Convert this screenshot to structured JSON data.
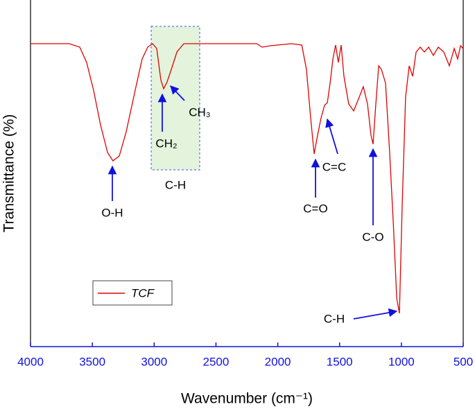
{
  "chart_data": {
    "type": "line",
    "x_label": "Wavenumber (cm⁻¹)",
    "y_label": "Transmittance (%)",
    "xlim": [
      4000,
      500
    ],
    "ylim": [
      0,
      100
    ],
    "xticks": [
      4000,
      3500,
      3000,
      2500,
      2000,
      1500,
      1000,
      500
    ],
    "legend_position": "lower left",
    "x": [
      4000,
      3686,
      3602,
      3546,
      3490,
      3434,
      3377,
      3333,
      3282,
      3226,
      3153,
      3097,
      3052,
      3013,
      2979,
      2946,
      2923,
      2895,
      2861,
      2816,
      2760,
      2171,
      2126,
      2059,
      1891,
      1806,
      1768,
      1734,
      1706,
      1678,
      1650,
      1622,
      1599,
      1577,
      1554,
      1532,
      1510,
      1487,
      1465,
      1426,
      1386,
      1341,
      1308,
      1274,
      1246,
      1229,
      1207,
      1184,
      1162,
      1128,
      1095,
      1066,
      1038,
      1016,
      994,
      966,
      937,
      909,
      881,
      848,
      814,
      780,
      741,
      702,
      657,
      612,
      573,
      545,
      522,
      500
    ],
    "series": [
      {
        "name": "TCF",
        "color": "#e00000",
        "values": [
          87.4,
          87.4,
          86.4,
          82,
          74,
          64,
          56,
          53.6,
          55,
          62,
          74,
          83,
          86.4,
          87.4,
          86,
          77,
          74.4,
          76.4,
          80,
          85,
          87.4,
          87.4,
          86.4,
          86.8,
          87.4,
          87,
          80,
          66,
          55.6,
          61,
          66,
          69.6,
          70.4,
          76,
          83,
          87,
          82,
          87,
          78,
          70,
          68,
          72,
          75,
          70,
          61,
          58.4,
          70,
          81,
          80,
          76,
          56,
          36,
          14,
          9.6,
          40,
          72,
          81,
          78,
          85,
          86.4,
          85,
          86.4,
          84,
          86.4,
          85,
          81,
          86,
          83,
          86.8,
          86
        ]
      }
    ],
    "annotations": [
      "O-H",
      "C-H",
      "CH₂",
      "CH₃",
      "C=O",
      "C=C",
      "C-O",
      "C-H"
    ]
  }
}
